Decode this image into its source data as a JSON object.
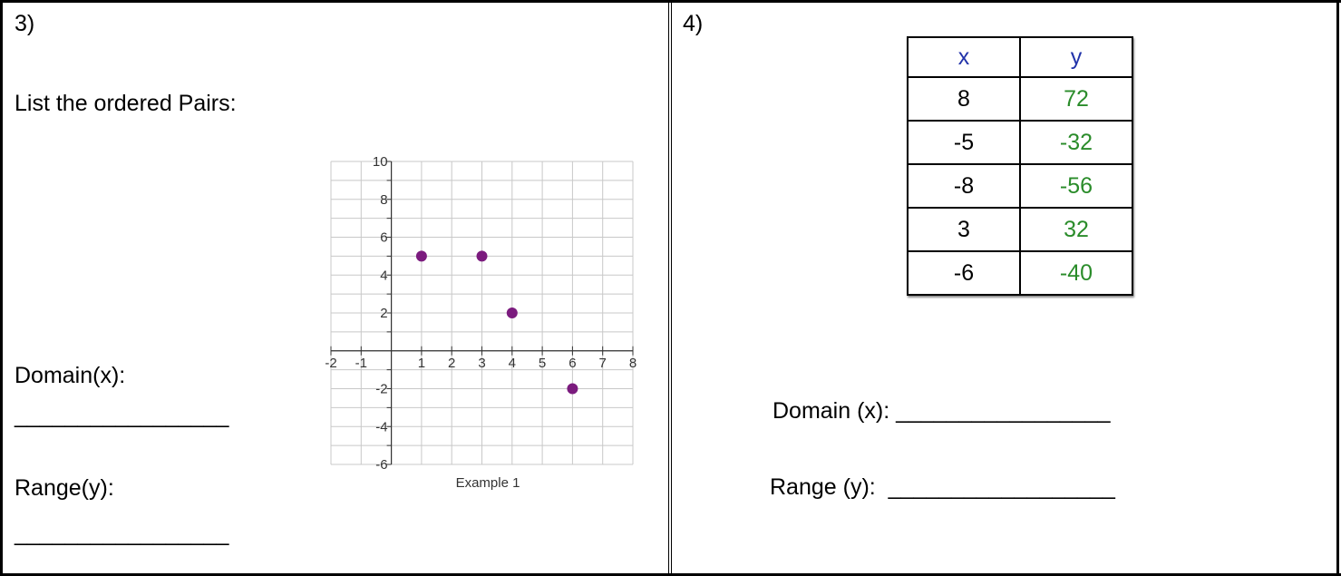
{
  "problem3": {
    "label": "3)",
    "instruction": "List the ordered Pairs:",
    "domain_label": "Domain(x):",
    "domain_blank": "_________________",
    "range_label": "Range(y):",
    "range_blank": "_________________"
  },
  "problem4": {
    "label": "4)",
    "table": {
      "headers": [
        "x",
        "y"
      ],
      "rows": [
        [
          "8",
          "72"
        ],
        [
          "-5",
          "-32"
        ],
        [
          "-8",
          "-56"
        ],
        [
          "3",
          "32"
        ],
        [
          "-6",
          "-40"
        ]
      ]
    },
    "domain_label": "Domain (x): _________________",
    "range_label": "Range (y):  __________________"
  },
  "colors": {
    "point": "#7b1b7e",
    "header_text": "#2233aa",
    "y_values": "#2a8c2a",
    "grid": "#c8c8c8"
  },
  "chart_data": {
    "type": "scatter",
    "title": "Example 1",
    "xlim": [
      -2,
      8
    ],
    "ylim": [
      -6,
      10
    ],
    "x_ticks": [
      "-2",
      "-1",
      "1",
      "2",
      "3",
      "4",
      "5",
      "6",
      "7",
      "8"
    ],
    "y_ticks": [
      "10",
      "8",
      "6",
      "4",
      "2",
      "-2",
      "-4",
      "-6"
    ],
    "grid": true,
    "points": [
      {
        "x": 1,
        "y": 5
      },
      {
        "x": 3,
        "y": 5
      },
      {
        "x": 4,
        "y": 2
      },
      {
        "x": 6,
        "y": -2
      }
    ]
  }
}
